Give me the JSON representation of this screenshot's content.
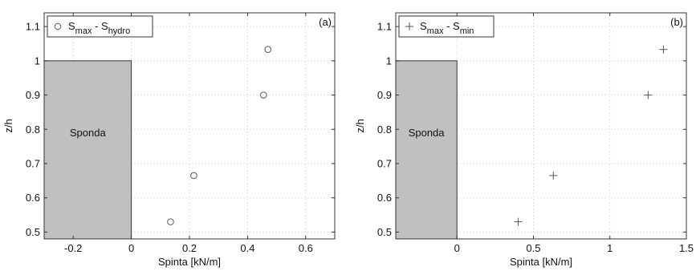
{
  "chart_data": [
    {
      "type": "scatter",
      "panel_label": "(a)",
      "xlabel": "Spinta [kN/m]",
      "ylabel": "z/h",
      "xlim": [
        -0.3,
        0.7
      ],
      "ylim": [
        0.48,
        1.14
      ],
      "xticks": [
        "-0.2",
        "0",
        "0.2",
        "0.4",
        "0.6"
      ],
      "yticks": [
        "0.5",
        "0.6",
        "0.7",
        "0.8",
        "0.9",
        "1",
        "1.1"
      ],
      "grid": true,
      "legend_position": "top-left",
      "bank": {
        "label": "Sponda",
        "x": [
          -0.3,
          0
        ],
        "y": [
          0.48,
          1
        ]
      },
      "series": [
        {
          "name": "S_max - S_hydro",
          "name_main": "S",
          "name_sub1": "max",
          "name_mid": " - S",
          "name_sub2": "hydro",
          "marker": "circle",
          "x": [
            0.135,
            0.215,
            0.455,
            0.47
          ],
          "y": [
            0.53,
            0.665,
            0.9,
            1.033
          ]
        }
      ]
    },
    {
      "type": "scatter",
      "panel_label": "(b)",
      "xlabel": "Spinta [kN/m]",
      "ylabel": "z/h",
      "xlim": [
        -0.4,
        1.5
      ],
      "ylim": [
        0.48,
        1.14
      ],
      "xticks": [
        "0",
        "0.5",
        "1",
        "1.5"
      ],
      "yticks": [
        "0.5",
        "0.6",
        "0.7",
        "0.8",
        "0.9",
        "1",
        "1.1"
      ],
      "grid": true,
      "legend_position": "top-left",
      "bank": {
        "label": "Sponda",
        "x": [
          -0.4,
          0
        ],
        "y": [
          0.48,
          1
        ]
      },
      "series": [
        {
          "name": "S_max - S_min",
          "name_main": "S",
          "name_sub1": "max",
          "name_mid": " - S",
          "name_sub2": "min",
          "marker": "plus",
          "x": [
            0.4,
            0.63,
            1.25,
            1.35
          ],
          "y": [
            0.53,
            0.665,
            0.9,
            1.033
          ]
        }
      ]
    }
  ]
}
